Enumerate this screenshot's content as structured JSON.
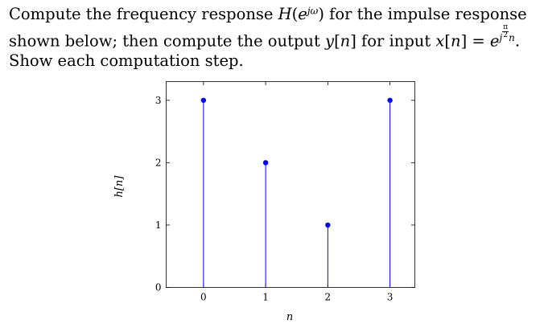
{
  "problem": {
    "t1": "Compute the frequency response ",
    "t2": "H",
    "t3": "(",
    "t4": "e",
    "t5": "jω",
    "t6": ") for the impulse response shown below; then compute the output ",
    "t7": "y",
    "t8": "[",
    "t9": "n",
    "t10": "] for input ",
    "t11": "x",
    "t12": "[",
    "t13": "n",
    "t14": "] = ",
    "t15": "e",
    "t16": "j",
    "t17": "π",
    "t18": "2",
    "t19": "n",
    "t20": ". Show each computation step."
  },
  "chart_data": {
    "type": "stem",
    "x": [
      0,
      1,
      2,
      3
    ],
    "values": [
      3,
      2,
      1,
      3
    ],
    "xlabel": "n",
    "ylabel": "h[n]",
    "xlim": [
      -0.6,
      3.4
    ],
    "ylim": [
      0,
      3.3
    ],
    "xticks": [
      "0",
      "1",
      "2",
      "3"
    ],
    "yticks": [
      "0",
      "1",
      "2",
      "3"
    ],
    "grid": false,
    "color": "#0000ff"
  }
}
